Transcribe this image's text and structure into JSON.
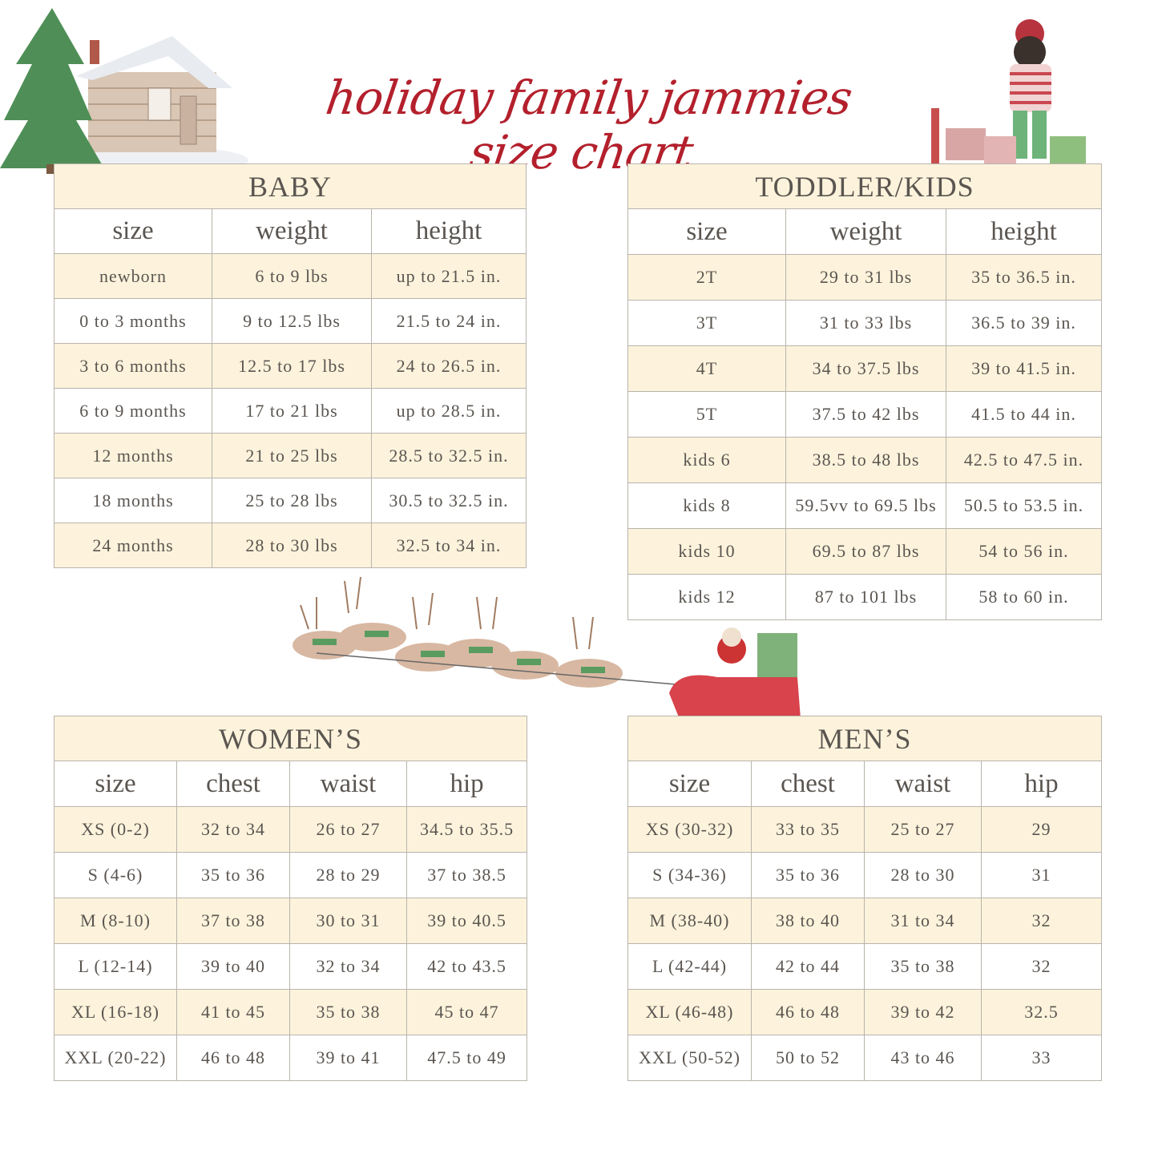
{
  "title": "holiday family jammies size chart",
  "colors": {
    "title": "#b3202c",
    "header_bg": "#fdf3dc",
    "text": "#5a5550",
    "border": "#b9b4ac"
  },
  "illustrations": [
    "cabin-with-pine-tree",
    "girl-with-gifts-and-nutcracker",
    "santa-sleigh-with-reindeer"
  ],
  "tables": {
    "baby": {
      "title": "BABY",
      "columns": [
        "size",
        "weight",
        "height"
      ],
      "rows": [
        [
          "newborn",
          "6 to 9 lbs",
          "up to 21.5 in."
        ],
        [
          "0 to 3 months",
          "9 to 12.5 lbs",
          "21.5 to 24 in."
        ],
        [
          "3 to 6 months",
          "12.5 to 17 lbs",
          "24 to 26.5 in."
        ],
        [
          "6 to 9 months",
          "17 to 21 lbs",
          "up to 28.5 in."
        ],
        [
          "12 months",
          "21 to 25 lbs",
          "28.5 to 32.5 in."
        ],
        [
          "18 months",
          "25 to 28 lbs",
          "30.5 to 32.5 in."
        ],
        [
          "24 months",
          "28 to 30 lbs",
          "32.5 to 34 in."
        ]
      ]
    },
    "kids": {
      "title": "TODDLER/KIDS",
      "columns": [
        "size",
        "weight",
        "height"
      ],
      "rows": [
        [
          "2T",
          "29 to 31 lbs",
          "35 to 36.5 in."
        ],
        [
          "3T",
          "31 to 33 lbs",
          "36.5 to 39 in."
        ],
        [
          "4T",
          "34 to 37.5 lbs",
          "39 to 41.5 in."
        ],
        [
          "5T",
          "37.5 to 42 lbs",
          "41.5 to 44 in."
        ],
        [
          "kids 6",
          "38.5 to 48 lbs",
          "42.5 to 47.5 in."
        ],
        [
          "kids 8",
          "59.5vv to 69.5 lbs",
          "50.5 to 53.5 in."
        ],
        [
          "kids 10",
          "69.5 to 87 lbs",
          "54 to 56 in."
        ],
        [
          "kids 12",
          "87 to 101 lbs",
          "58 to 60 in."
        ]
      ]
    },
    "women": {
      "title": "WOMEN’S",
      "columns": [
        "size",
        "chest",
        "waist",
        "hip"
      ],
      "rows": [
        [
          "XS (0-2)",
          "32 to 34",
          "26 to 27",
          "34.5 to 35.5"
        ],
        [
          "S (4-6)",
          "35 to 36",
          "28 to 29",
          "37 to 38.5"
        ],
        [
          "M (8-10)",
          "37 to 38",
          "30 to 31",
          "39 to 40.5"
        ],
        [
          "L (12-14)",
          "39 to 40",
          "32 to 34",
          "42 to 43.5"
        ],
        [
          "XL (16-18)",
          "41 to 45",
          "35 to 38",
          "45 to 47"
        ],
        [
          "XXL (20-22)",
          "46 to 48",
          "39 to 41",
          "47.5 to 49"
        ]
      ]
    },
    "men": {
      "title": "MEN’S",
      "columns": [
        "size",
        "chest",
        "waist",
        "hip"
      ],
      "rows": [
        [
          "XS (30-32)",
          "33 to 35",
          "25 to 27",
          "29"
        ],
        [
          "S (34-36)",
          "35 to 36",
          "28 to 30",
          "31"
        ],
        [
          "M (38-40)",
          "38 to 40",
          "31 to 34",
          "32"
        ],
        [
          "L (42-44)",
          "42 to 44",
          "35 to 38",
          "32"
        ],
        [
          "XL (46-48)",
          "46 to 48",
          "39 to 42",
          "32.5"
        ],
        [
          "XXL (50-52)",
          "50 to 52",
          "43 to 46",
          "33"
        ]
      ]
    }
  }
}
